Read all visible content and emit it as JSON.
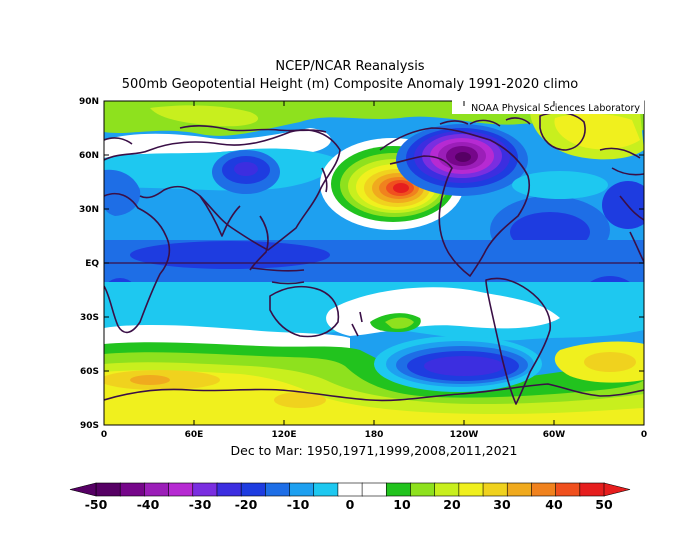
{
  "title_line1": "NCEP/NCAR Reanalysis",
  "title_line2": "500mb Geopotential Height (m) Composite Anomaly 1991-2020 climo",
  "credit": "NOAA Physical Sciences Laboratory",
  "subtitle": "Dec to Mar: 1950,1971,1999,2008,2011,2021",
  "lat_labels": [
    "90N",
    "60N",
    "30N",
    "EQ",
    "30S",
    "60S",
    "90S"
  ],
  "lon_labels": [
    "0",
    "60E",
    "120E",
    "180",
    "120W",
    "60W",
    "0"
  ],
  "colorbar": {
    "labels": [
      "-50",
      "-40",
      "-30",
      "-20",
      "-10",
      "0",
      "10",
      "20",
      "30",
      "40",
      "50"
    ],
    "colors": [
      "#560064",
      "#76068a",
      "#9b1eb8",
      "#b62ad2",
      "#7a2ee0",
      "#3c2ee0",
      "#1e3ce0",
      "#1e6ee6",
      "#1ea0f0",
      "#1ec8f0",
      "#ffffff",
      "#ffffff",
      "#22c31e",
      "#8ee11e",
      "#c8ef1e",
      "#f0f01e",
      "#f0d21e",
      "#f0aa1e",
      "#f0821e",
      "#f0501e",
      "#e61e1e"
    ]
  },
  "palette": {
    "deep_purple": "#56008c",
    "purple": "#9b1eb8",
    "blue_dark": "#3c2ee0",
    "blue": "#1e6ee6",
    "light_blue": "#1ea0f0",
    "cyan": "#1ec8f0",
    "white": "#ffffff",
    "green": "#22c31e",
    "lime": "#8ee11e",
    "yellow_green": "#c8ef1e",
    "yellow": "#f0f01e",
    "gold": "#f0d21e",
    "orange": "#f0aa1e",
    "dark_orange": "#f0821e",
    "red_orange": "#f0501e",
    "red": "#e61e1e",
    "coast": "#3a0f46"
  },
  "anomaly_features": [
    {
      "name": "north-pacific-ridge",
      "value": 50
    },
    {
      "name": "canada-trough",
      "value": -50
    },
    {
      "name": "south-pacific-trough",
      "value": -25
    },
    {
      "name": "siberia-trough",
      "value": -25
    }
  ]
}
